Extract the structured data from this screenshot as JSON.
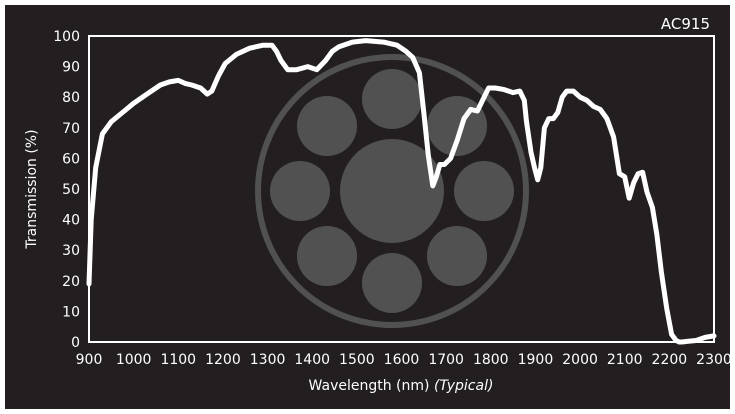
{
  "badge": "AC915",
  "colors": {
    "background": "#231f20",
    "line": "#ffffff",
    "watermark": "#5a5a5a"
  },
  "watermark_icon": "filter-wheel-icon",
  "chart_data": {
    "type": "line",
    "title": "",
    "xlabel": "Wavelength (nm)",
    "xlabel_suffix": "(Typical)",
    "ylabel": "Transmission (%)",
    "xlim": [
      900,
      2300
    ],
    "ylim": [
      0,
      100
    ],
    "xticks": [
      900,
      1000,
      1100,
      1200,
      1300,
      1400,
      1500,
      1600,
      1700,
      1800,
      1900,
      2000,
      2100,
      2200,
      2300
    ],
    "yticks": [
      0,
      10,
      20,
      30,
      40,
      50,
      60,
      70,
      80,
      90,
      100
    ],
    "grid": false,
    "series": [
      {
        "x": [
          900,
          905,
          915,
          930,
          950,
          975,
          1000,
          1030,
          1060,
          1080,
          1100,
          1115,
          1130,
          1150,
          1165,
          1175,
          1190,
          1205,
          1230,
          1260,
          1290,
          1310,
          1320,
          1330,
          1345,
          1365,
          1390,
          1410,
          1430,
          1445,
          1460,
          1490,
          1520,
          1560,
          1590,
          1610,
          1625,
          1640,
          1650,
          1660,
          1670,
          1678,
          1686,
          1696,
          1710,
          1725,
          1740,
          1755,
          1770,
          1785,
          1795,
          1810,
          1830,
          1850,
          1865,
          1875,
          1880,
          1890,
          1898,
          1905,
          1912,
          1920,
          1930,
          1940,
          1950,
          1960,
          1970,
          1985,
          2000,
          2015,
          2030,
          2045,
          2060,
          2075,
          2088,
          2100,
          2110,
          2120,
          2130,
          2140,
          2150,
          2162,
          2172,
          2182,
          2194,
          2205,
          2215,
          2222,
          2228,
          2240,
          2260,
          2280,
          2300
        ],
        "y": [
          19,
          40,
          57,
          68,
          72,
          75,
          78,
          81,
          84,
          85,
          85.5,
          84.5,
          84,
          83,
          81,
          82,
          87,
          91,
          94,
          96,
          97,
          97,
          95,
          92,
          89,
          89,
          90,
          89,
          92,
          95,
          96.5,
          98,
          98.5,
          98,
          97,
          95,
          93,
          88,
          75,
          61,
          51,
          54,
          58,
          58,
          60,
          66,
          73,
          76,
          75.5,
          80,
          83,
          83,
          82.5,
          81.5,
          82,
          79,
          72,
          62,
          57,
          53,
          57,
          70,
          73,
          73,
          75,
          80,
          82,
          82,
          80,
          79,
          77,
          76,
          73,
          67,
          55,
          54,
          47,
          52,
          55,
          55.5,
          49,
          44,
          35,
          23,
          11,
          2.5,
          0.5,
          0,
          0,
          0.2,
          0.5,
          1.5,
          2
        ]
      }
    ]
  }
}
